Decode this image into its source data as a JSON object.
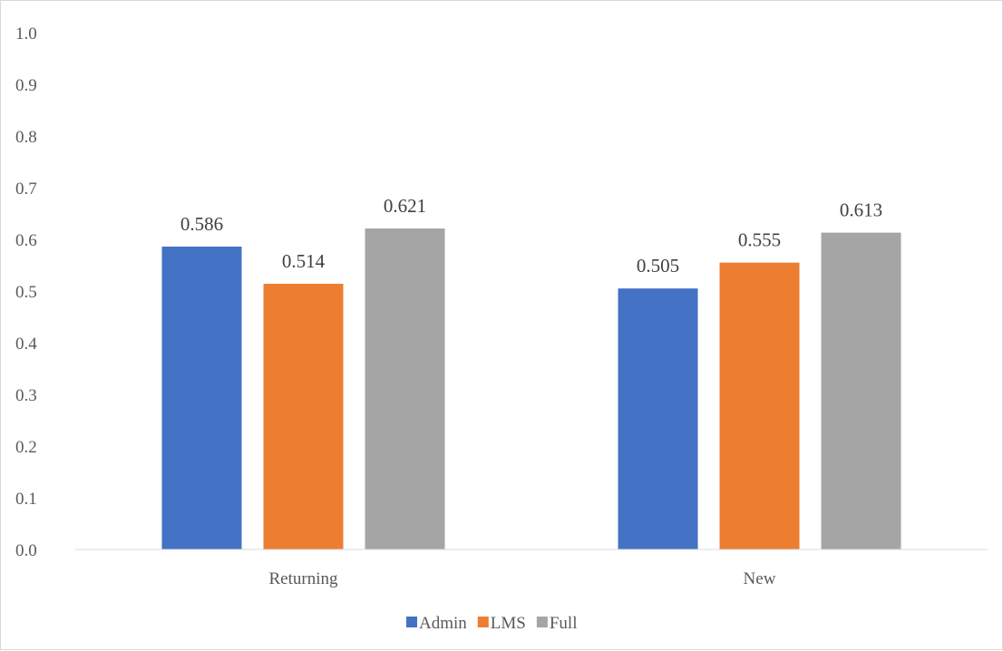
{
  "chart_data": {
    "type": "bar",
    "categories": [
      "Returning",
      "New"
    ],
    "series": [
      {
        "name": "Admin",
        "values": [
          0.586,
          0.505
        ],
        "color": "#4472C4"
      },
      {
        "name": "LMS",
        "values": [
          0.514,
          0.555
        ],
        "color": "#ED7D31"
      },
      {
        "name": "Full",
        "values": [
          0.621,
          0.613
        ],
        "color": "#A5A5A5"
      }
    ],
    "data_labels": [
      [
        "0.586",
        "0.514",
        "0.621"
      ],
      [
        "0.505",
        "0.555",
        "0.613"
      ]
    ],
    "ylim": [
      0,
      1.0
    ],
    "yticks": [
      "0.0",
      "0.1",
      "0.2",
      "0.3",
      "0.4",
      "0.5",
      "0.6",
      "0.7",
      "0.8",
      "0.9",
      "1.0"
    ],
    "title": "",
    "xlabel": "",
    "ylabel": "",
    "grid": false,
    "legend_position": "bottom"
  }
}
